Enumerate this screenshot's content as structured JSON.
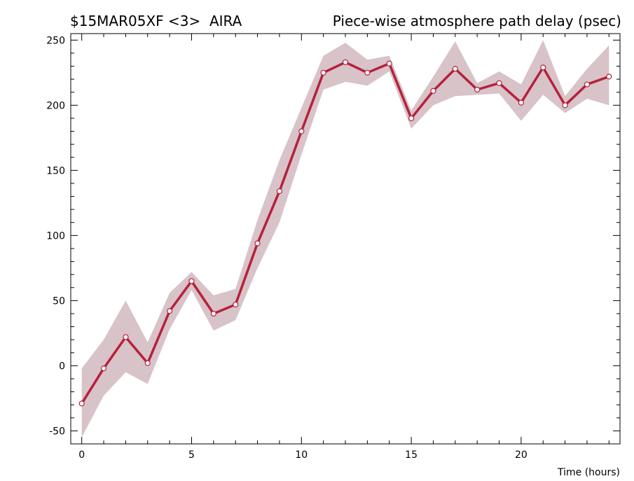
{
  "header": {
    "left": "$15MAR05XF <3>  AIRA",
    "right": "Piece-wise atmosphere path delay (psec)"
  },
  "chart_data": {
    "type": "line",
    "title": "Piece-wise atmosphere path delay (psec)",
    "xlabel": "Time (hours)",
    "ylabel": "",
    "xlim": [
      -0.5,
      24.5
    ],
    "ylim": [
      -60,
      255
    ],
    "xticks": [
      0,
      5,
      10,
      15,
      20
    ],
    "yticks": [
      -50,
      0,
      50,
      100,
      150,
      200,
      250
    ],
    "grid": false,
    "colors": {
      "line": "#b5213c",
      "band": "#d8c3c8",
      "marker_fill": "#ffffff"
    },
    "x": [
      0,
      1,
      2,
      3,
      4,
      5,
      6,
      7,
      8,
      9,
      10,
      11,
      12,
      13,
      14,
      15,
      16,
      17,
      18,
      19,
      20,
      21,
      22,
      23,
      24
    ],
    "series": [
      {
        "values": [
          -29,
          -2,
          22,
          2,
          42,
          65,
          40,
          47,
          94,
          134,
          180,
          225,
          233,
          225,
          232,
          190,
          211,
          228,
          212,
          217,
          202,
          229,
          200,
          216,
          222
        ],
        "upper": [
          -2,
          20,
          50,
          18,
          56,
          72,
          54,
          59,
          112,
          158,
          198,
          238,
          248,
          235,
          238,
          196,
          222,
          249,
          217,
          226,
          216,
          250,
          207,
          228,
          246
        ],
        "lower": [
          -55,
          -23,
          -5,
          -14,
          28,
          58,
          27,
          35,
          75,
          110,
          162,
          212,
          218,
          215,
          226,
          182,
          200,
          207,
          208,
          209,
          188,
          208,
          194,
          205,
          200
        ]
      }
    ]
  }
}
